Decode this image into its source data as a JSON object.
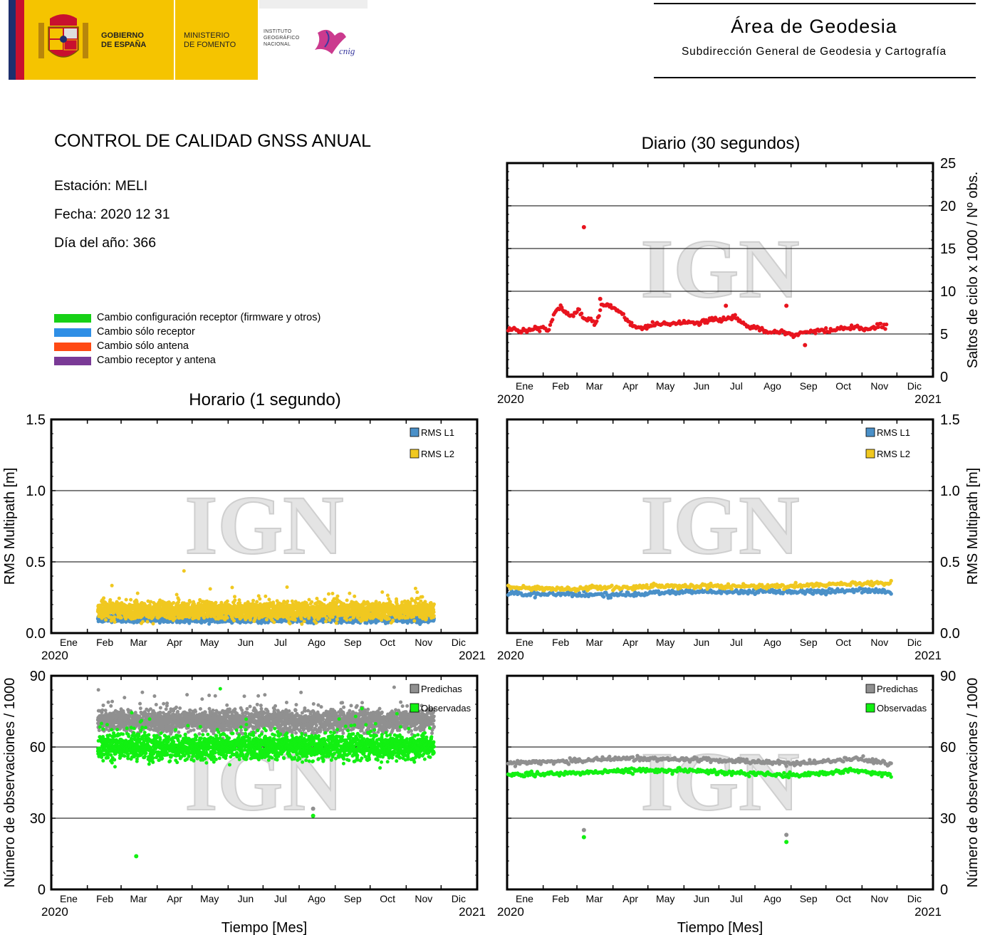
{
  "header": {
    "gobierno": [
      "GOBIERNO",
      "DE ESPAÑA"
    ],
    "ministerio": [
      "MINISTERIO",
      "DE FOMENTO"
    ],
    "instituto": [
      "INSTITUTO",
      "GEOGRÁFICO",
      "NACIONAL"
    ],
    "cnig": "cnig",
    "area_title": "Área de Geodesia",
    "area_subtitle": "Subdirección General de Geodesia y Cartografía"
  },
  "report": {
    "title": "CONTROL DE CALIDAD GNSS ANUAL",
    "station": "Estación: MELI",
    "date": "Fecha: 2020 12 31",
    "doy": "Día del año: 366"
  },
  "legend": [
    {
      "label": "Cambio configuración receptor (firmware y otros)",
      "color": "#17d117"
    },
    {
      "label": "Cambio sólo receptor",
      "color": "#2f8fe6"
    },
    {
      "label": "Cambio sólo antena",
      "color": "#ff4a14"
    },
    {
      "label": "Cambio receptor y antena",
      "color": "#7a3a96"
    }
  ],
  "watermark": "IGN",
  "colors": {
    "red": "#e8141e",
    "rms_l1": "#4a90c8",
    "rms_l2": "#f0c820",
    "predichas": "#909090",
    "observadas": "#12f012"
  },
  "chart_data": [
    {
      "id": "saltos_diario",
      "type": "scatter",
      "title": "Diario (30 segundos)",
      "ylabel": "Saltos de ciclo x 1000 / Nº obs.",
      "y_ticks": [
        "0",
        "5",
        "10",
        "15",
        "20",
        "25"
      ],
      "ylim": [
        0,
        25
      ],
      "xlim": [
        0,
        366
      ],
      "x_tick_labels": [
        "Ene",
        "Feb",
        "Mar",
        "Apr",
        "May",
        "Jun",
        "Jul",
        "Ago",
        "Sep",
        "Oct",
        "Nov",
        "Dic"
      ],
      "year_start": "2020",
      "year_end": "2021",
      "grid": "horizontal",
      "series": [
        {
          "color": "#e8141e",
          "x": [
            1,
            11,
            21,
            31,
            35,
            41,
            46,
            51,
            56,
            61,
            66,
            71,
            76,
            81,
            86,
            91,
            96,
            101,
            106,
            111,
            116,
            126,
            136,
            146,
            156,
            166,
            176,
            186,
            196,
            206,
            216,
            226,
            236,
            246,
            256,
            266,
            276,
            286,
            296,
            306,
            316,
            320,
            326
          ],
          "values": [
            5.6,
            5.4,
            5.5,
            5.8,
            5.2,
            7.6,
            8.3,
            7.4,
            7.0,
            7.9,
            6.9,
            6.6,
            6.3,
            8.2,
            8.5,
            8.0,
            7.6,
            6.9,
            6.1,
            6.0,
            5.7,
            6.1,
            6.2,
            6.3,
            6.4,
            6.3,
            6.6,
            6.7,
            6.9,
            5.9,
            5.7,
            5.2,
            5.3,
            4.8,
            5.2,
            5.4,
            5.4,
            5.6,
            5.7,
            5.6,
            5.7,
            6.1,
            5.8
          ],
          "outliers": [
            [
              66,
              17.5
            ],
            [
              80,
              9.1
            ],
            [
              188,
              8.3
            ],
            [
              240,
              8.3
            ],
            [
              256,
              3.7
            ]
          ]
        }
      ]
    },
    {
      "id": "rms_horario",
      "type": "scatter",
      "title": "Horario (1 segundo)",
      "ylabel": "RMS Multipath [m]",
      "y_ticks": [
        "0.0",
        "0.5",
        "1.0",
        "1.5"
      ],
      "ylim": [
        0,
        1.5
      ],
      "xlim": [
        0,
        366
      ],
      "x_tick_labels": [
        "Ene",
        "Feb",
        "Mar",
        "Apr",
        "May",
        "Jun",
        "Jul",
        "Ago",
        "Sep",
        "Oct",
        "Nov",
        "Dic"
      ],
      "year_start": "2020",
      "year_end": "2021",
      "x_range_data": [
        40,
        329
      ],
      "series": [
        {
          "name": "RMS L1",
          "color": "#4a90c8",
          "mean": 0.1,
          "spread": 0.03
        },
        {
          "name": "RMS L2",
          "color": "#f0c820",
          "mean": 0.16,
          "spread": 0.08
        }
      ]
    },
    {
      "id": "rms_diario",
      "type": "scatter",
      "ylabel": "RMS Multipath [m]",
      "y_ticks": [
        "0.0",
        "0.5",
        "1.0",
        "1.5"
      ],
      "ylim": [
        0,
        1.5
      ],
      "xlim": [
        0,
        366
      ],
      "x_tick_labels": [
        "Ene",
        "Feb",
        "Mar",
        "Apr",
        "May",
        "Jun",
        "Jul",
        "Ago",
        "Sep",
        "Oct",
        "Nov",
        "Dic"
      ],
      "year_start": "2020",
      "year_end": "2021",
      "series": [
        {
          "name": "RMS L1",
          "color": "#4a90c8",
          "x": [
            1,
            50,
            100,
            150,
            200,
            250,
            300,
            330
          ],
          "values": [
            0.28,
            0.27,
            0.27,
            0.29,
            0.29,
            0.29,
            0.3,
            0.29
          ]
        },
        {
          "name": "RMS L2",
          "color": "#f0c820",
          "x": [
            1,
            50,
            100,
            150,
            200,
            250,
            300,
            330
          ],
          "values": [
            0.32,
            0.31,
            0.32,
            0.33,
            0.33,
            0.33,
            0.35,
            0.35
          ]
        }
      ]
    },
    {
      "id": "obs_horario",
      "type": "scatter",
      "xlabel": "Tiempo [Mes]",
      "ylabel": "Número de observaciones / 1000",
      "y_ticks": [
        "0",
        "30",
        "60",
        "90"
      ],
      "ylim": [
        0,
        90
      ],
      "xlim": [
        0,
        366
      ],
      "x_tick_labels": [
        "Ene",
        "Feb",
        "Mar",
        "Apr",
        "May",
        "Jun",
        "Jul",
        "Ago",
        "Sep",
        "Oct",
        "Nov",
        "Dic"
      ],
      "year_start": "2020",
      "year_end": "2021",
      "x_range_data": [
        40,
        329
      ],
      "series": [
        {
          "name": "Predichas",
          "color": "#909090",
          "mean": 71,
          "spread": 6
        },
        {
          "name": "Observadas",
          "color": "#12f012",
          "mean": 60,
          "spread": 7
        }
      ],
      "outliers": [
        [
          73,
          14,
          "#12f012"
        ],
        [
          225,
          34,
          "#909090"
        ],
        [
          225,
          31,
          "#12f012"
        ]
      ]
    },
    {
      "id": "obs_diario",
      "type": "scatter",
      "xlabel": "Tiempo [Mes]",
      "ylabel": "Número de observaciones / 1000",
      "y_ticks": [
        "0",
        "30",
        "60",
        "90"
      ],
      "ylim": [
        0,
        90
      ],
      "xlim": [
        0,
        366
      ],
      "x_tick_labels": [
        "Ene",
        "Feb",
        "Mar",
        "Apr",
        "May",
        "Jun",
        "Jul",
        "Ago",
        "Sep",
        "Oct",
        "Nov",
        "Dic"
      ],
      "year_start": "2020",
      "year_end": "2021",
      "series": [
        {
          "name": "Predichas",
          "color": "#909090",
          "x": [
            1,
            50,
            100,
            150,
            200,
            250,
            300,
            330
          ],
          "values": [
            53,
            54,
            55,
            55,
            54,
            53,
            55,
            53
          ]
        },
        {
          "name": "Observadas",
          "color": "#12f012",
          "x": [
            1,
            50,
            100,
            150,
            200,
            250,
            300,
            330
          ],
          "values": [
            48,
            49,
            50,
            50,
            49,
            48,
            50,
            48
          ]
        }
      ],
      "outliers": [
        [
          66,
          25,
          "#909090"
        ],
        [
          66,
          22,
          "#12f012"
        ],
        [
          240,
          23,
          "#909090"
        ],
        [
          240,
          20,
          "#12f012"
        ]
      ]
    }
  ]
}
